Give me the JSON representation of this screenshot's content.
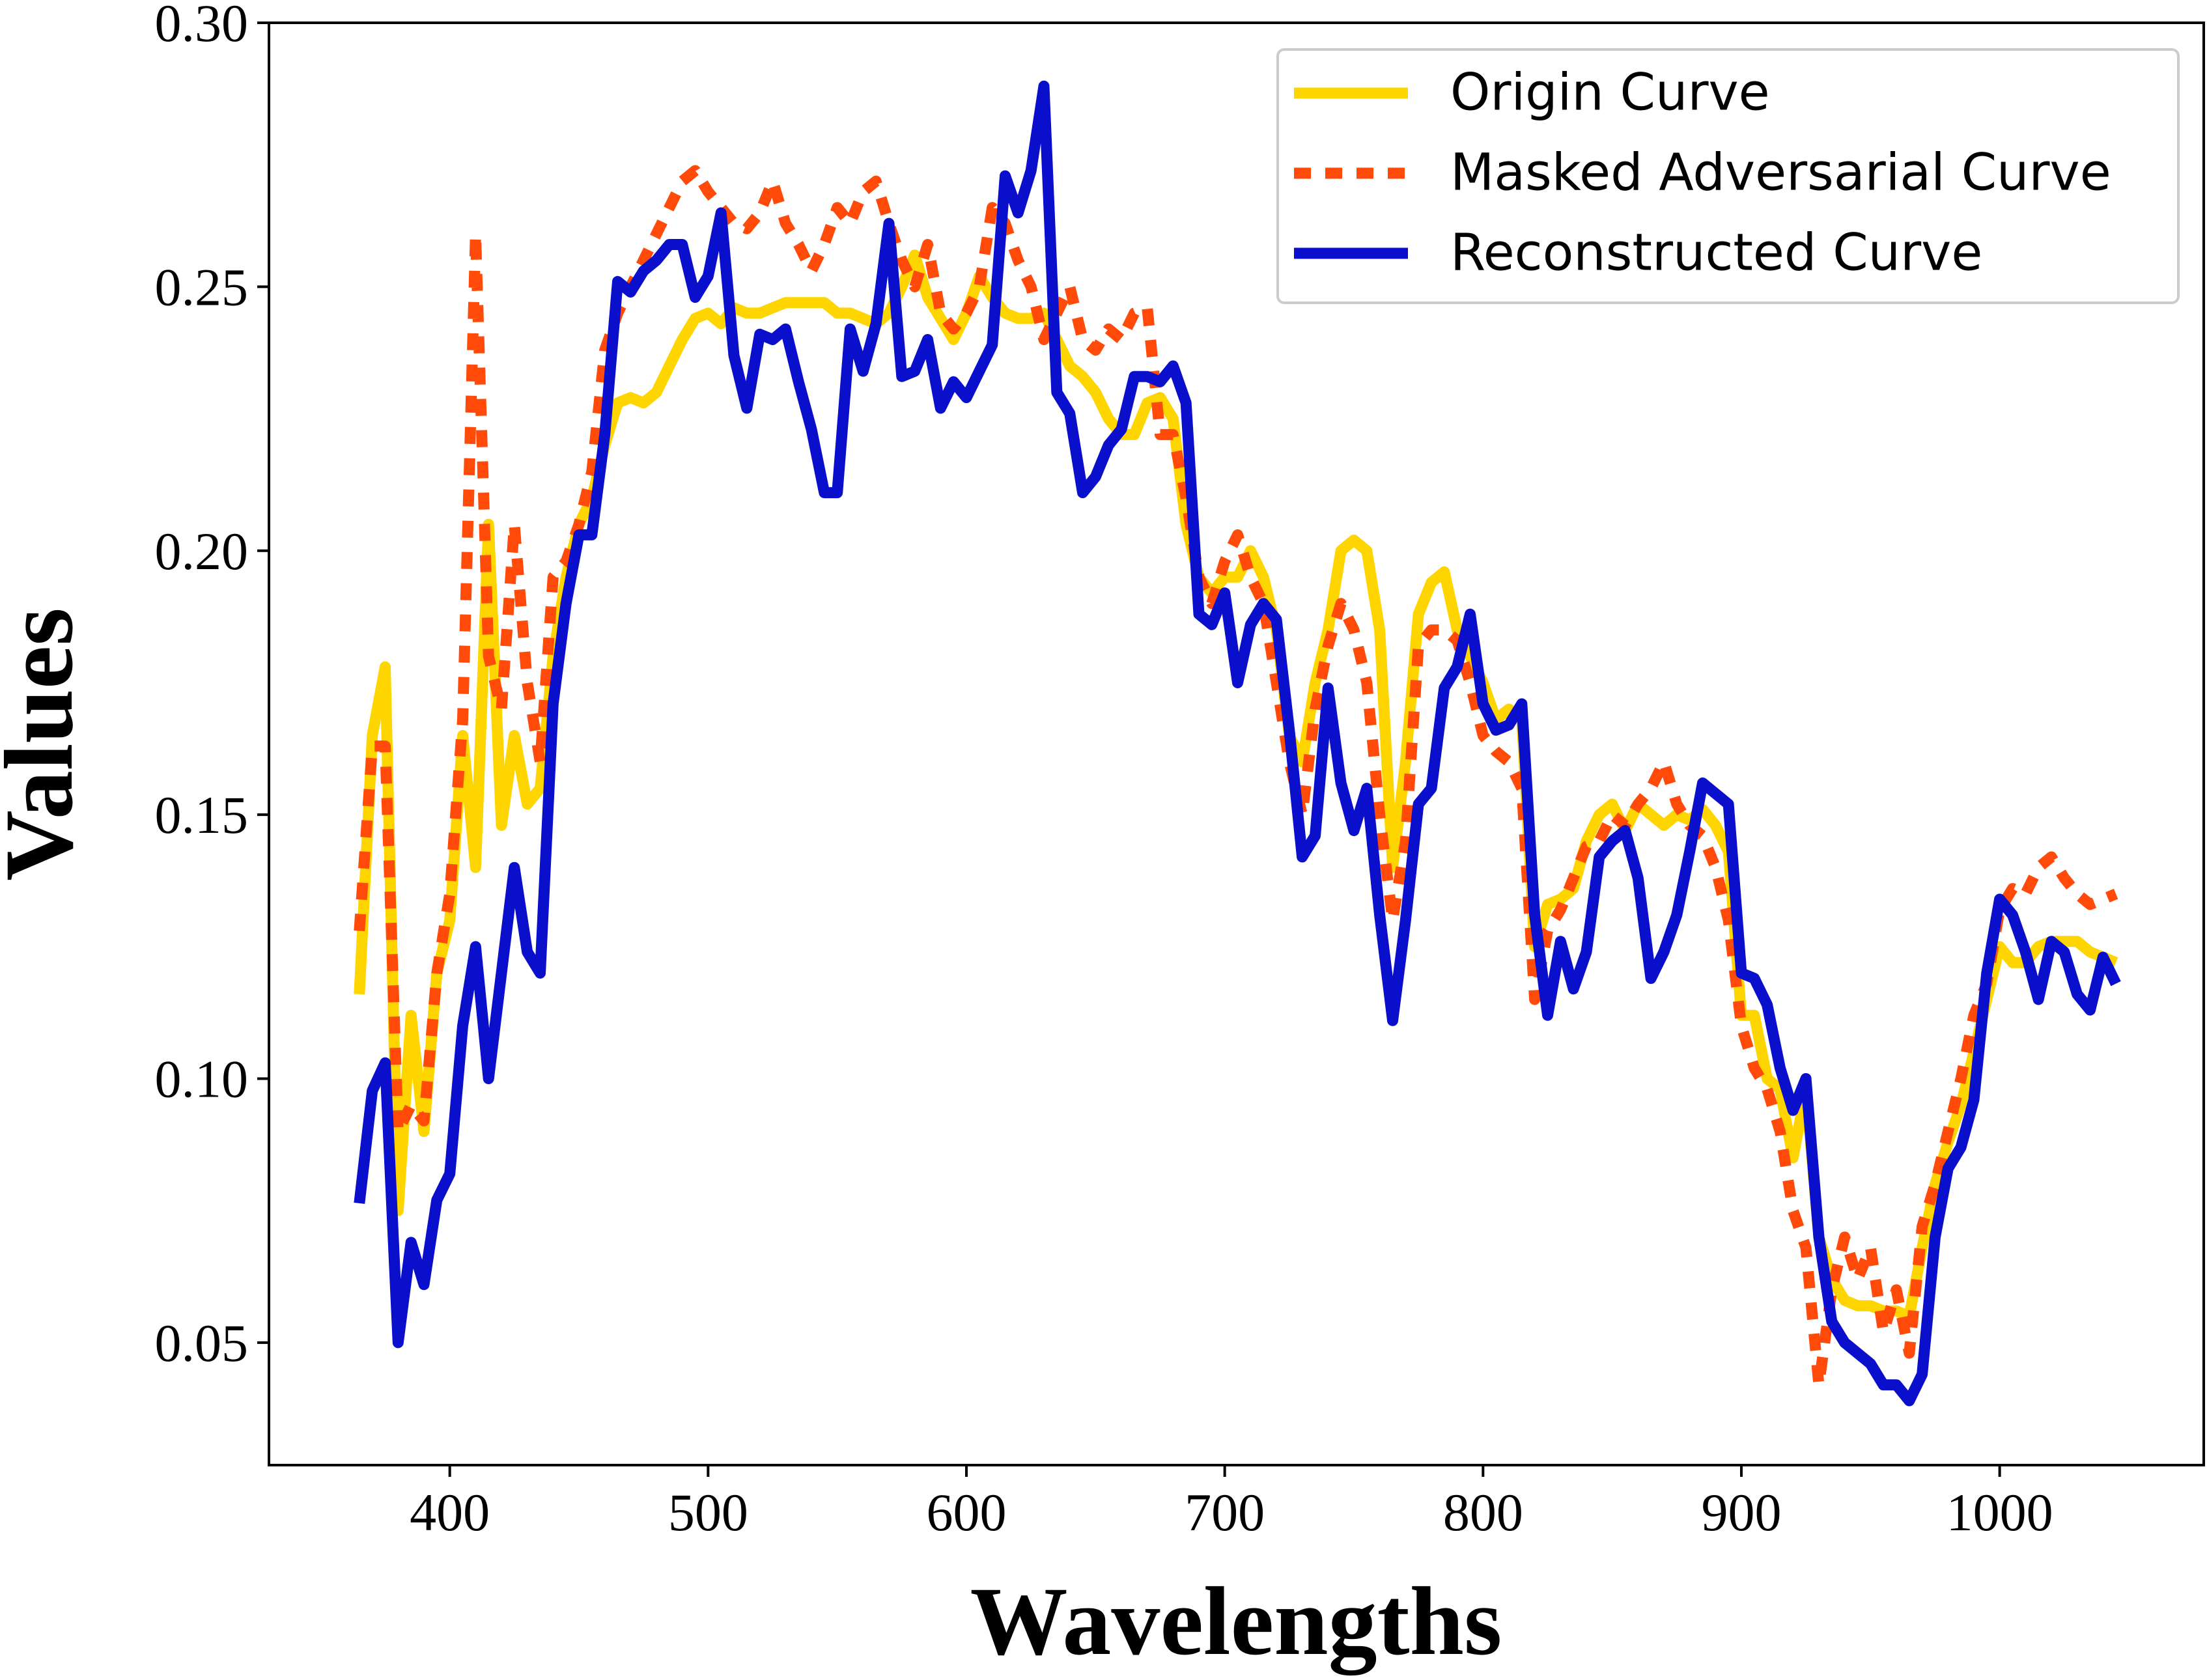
{
  "chart_data": {
    "type": "line",
    "xlabel": "Wavelengths",
    "ylabel": "Values",
    "x": [
      365,
      370,
      375,
      380,
      385,
      390,
      395,
      400,
      405,
      410,
      415,
      420,
      425,
      430,
      435,
      440,
      445,
      450,
      455,
      460,
      465,
      470,
      475,
      480,
      485,
      490,
      495,
      500,
      505,
      510,
      515,
      520,
      525,
      530,
      535,
      540,
      545,
      550,
      555,
      560,
      565,
      570,
      575,
      580,
      585,
      590,
      595,
      600,
      605,
      610,
      615,
      620,
      625,
      630,
      635,
      640,
      645,
      650,
      655,
      660,
      665,
      670,
      675,
      680,
      685,
      690,
      695,
      700,
      705,
      710,
      715,
      720,
      725,
      730,
      735,
      740,
      745,
      750,
      755,
      760,
      765,
      770,
      775,
      780,
      785,
      790,
      795,
      800,
      805,
      810,
      815,
      820,
      825,
      830,
      835,
      840,
      845,
      850,
      855,
      860,
      865,
      870,
      875,
      880,
      885,
      890,
      895,
      900,
      905,
      910,
      915,
      920,
      925,
      930,
      935,
      940,
      945,
      950,
      955,
      960,
      965,
      970,
      975,
      980,
      985,
      990,
      995,
      1000,
      1005,
      1010,
      1015,
      1020,
      1025,
      1030,
      1035,
      1040,
      1045
    ],
    "series": [
      {
        "name": "Origin Curve",
        "color": "#ffd500",
        "style": "solid",
        "values": [
          0.116,
          0.165,
          0.178,
          0.075,
          0.112,
          0.09,
          0.12,
          0.13,
          0.165,
          0.14,
          0.205,
          0.148,
          0.165,
          0.152,
          0.155,
          0.18,
          0.195,
          0.205,
          0.21,
          0.22,
          0.228,
          0.229,
          0.228,
          0.23,
          0.235,
          0.24,
          0.244,
          0.245,
          0.243,
          0.246,
          0.245,
          0.245,
          0.246,
          0.247,
          0.247,
          0.247,
          0.247,
          0.245,
          0.245,
          0.244,
          0.243,
          0.245,
          0.25,
          0.256,
          0.248,
          0.244,
          0.24,
          0.245,
          0.252,
          0.248,
          0.245,
          0.244,
          0.244,
          0.245,
          0.24,
          0.235,
          0.233,
          0.23,
          0.225,
          0.222,
          0.222,
          0.228,
          0.229,
          0.225,
          0.205,
          0.195,
          0.192,
          0.195,
          0.195,
          0.2,
          0.195,
          0.185,
          0.165,
          0.16,
          0.175,
          0.185,
          0.2,
          0.202,
          0.2,
          0.185,
          0.14,
          0.16,
          0.188,
          0.194,
          0.196,
          0.185,
          0.18,
          0.175,
          0.168,
          0.17,
          0.168,
          0.125,
          0.133,
          0.134,
          0.136,
          0.145,
          0.15,
          0.152,
          0.147,
          0.152,
          0.15,
          0.148,
          0.15,
          0.149,
          0.151,
          0.148,
          0.143,
          0.112,
          0.112,
          0.1,
          0.098,
          0.085,
          0.098,
          0.07,
          0.062,
          0.058,
          0.057,
          0.057,
          0.056,
          0.056,
          0.055,
          0.068,
          0.08,
          0.088,
          0.095,
          0.105,
          0.115,
          0.125,
          0.122,
          0.122,
          0.125,
          0.126,
          0.126,
          0.126,
          0.124,
          0.123,
          0.122
        ]
      },
      {
        "name": "Masked Adversarial Curve",
        "color": "#ff4a0a",
        "style": "dashed",
        "values": [
          0.128,
          0.163,
          0.163,
          0.09,
          0.095,
          0.092,
          0.12,
          0.135,
          0.168,
          0.26,
          0.18,
          0.17,
          0.205,
          0.175,
          0.16,
          0.195,
          0.198,
          0.205,
          0.215,
          0.238,
          0.245,
          0.25,
          0.255,
          0.26,
          0.265,
          0.27,
          0.272,
          0.268,
          0.265,
          0.262,
          0.261,
          0.264,
          0.27,
          0.262,
          0.258,
          0.253,
          0.258,
          0.265,
          0.262,
          0.268,
          0.27,
          0.262,
          0.255,
          0.25,
          0.258,
          0.245,
          0.242,
          0.245,
          0.25,
          0.265,
          0.262,
          0.255,
          0.25,
          0.24,
          0.245,
          0.25,
          0.24,
          0.238,
          0.242,
          0.24,
          0.245,
          0.246,
          0.222,
          0.222,
          0.21,
          0.195,
          0.19,
          0.198,
          0.203,
          0.195,
          0.19,
          0.175,
          0.16,
          0.15,
          0.17,
          0.182,
          0.19,
          0.185,
          0.175,
          0.15,
          0.13,
          0.145,
          0.182,
          0.185,
          0.185,
          0.183,
          0.175,
          0.165,
          0.162,
          0.16,
          0.155,
          0.115,
          0.128,
          0.132,
          0.138,
          0.144,
          0.145,
          0.15,
          0.148,
          0.152,
          0.155,
          0.16,
          0.152,
          0.148,
          0.146,
          0.14,
          0.13,
          0.11,
          0.102,
          0.098,
          0.09,
          0.075,
          0.068,
          0.042,
          0.06,
          0.07,
          0.062,
          0.068,
          0.052,
          0.06,
          0.048,
          0.072,
          0.08,
          0.09,
          0.1,
          0.112,
          0.118,
          0.132,
          0.136,
          0.135,
          0.14,
          0.142,
          0.138,
          0.135,
          0.133,
          0.134,
          0.135
        ]
      },
      {
        "name": "Reconstructed Curve",
        "color": "#0a0fcc",
        "style": "solid",
        "values": [
          0.0764,
          0.0977,
          0.103,
          0.05,
          0.069,
          0.061,
          0.077,
          0.082,
          0.11,
          0.125,
          0.1,
          0.12,
          0.14,
          0.124,
          0.12,
          0.171,
          0.19,
          0.203,
          0.203,
          0.222,
          0.251,
          0.249,
          0.253,
          0.255,
          0.258,
          0.258,
          0.248,
          0.252,
          0.264,
          0.237,
          0.227,
          0.241,
          0.24,
          0.242,
          0.232,
          0.223,
          0.211,
          0.211,
          0.242,
          0.234,
          0.243,
          0.262,
          0.233,
          0.234,
          0.24,
          0.227,
          0.232,
          0.229,
          0.234,
          0.239,
          0.271,
          0.264,
          0.272,
          0.288,
          0.23,
          0.226,
          0.211,
          0.214,
          0.22,
          0.223,
          0.233,
          0.233,
          0.232,
          0.235,
          0.228,
          0.188,
          0.186,
          0.192,
          0.175,
          0.186,
          0.19,
          0.187,
          0.166,
          0.142,
          0.146,
          0.174,
          0.156,
          0.147,
          0.155,
          0.131,
          0.111,
          0.13,
          0.152,
          0.155,
          0.174,
          0.178,
          0.188,
          0.171,
          0.166,
          0.167,
          0.171,
          0.131,
          0.112,
          0.126,
          0.117,
          0.124,
          0.142,
          0.145,
          0.147,
          0.138,
          0.119,
          0.124,
          0.131,
          0.143,
          0.156,
          0.154,
          0.152,
          0.12,
          0.119,
          0.114,
          0.102,
          0.094,
          0.1,
          0.07,
          0.054,
          0.05,
          0.048,
          0.046,
          0.042,
          0.042,
          0.039,
          0.044,
          0.07,
          0.083,
          0.087,
          0.096,
          0.12,
          0.134,
          0.131,
          0.124,
          0.115,
          0.126,
          0.124,
          0.116,
          0.113,
          0.123,
          0.118
        ]
      }
    ],
    "xlim": [
      330,
      1079
    ],
    "ylim": [
      0.0268,
      0.3
    ],
    "xticks": [
      400,
      500,
      600,
      700,
      800,
      900,
      1000
    ],
    "yticks": [
      0.05,
      {
        "value": 0.1,
        "label": "0.10"
      },
      0.15,
      {
        "value": 0.2,
        "label": "0.20"
      },
      0.25,
      {
        "value": 0.3,
        "label": "0.30"
      }
    ],
    "grid": false,
    "legend": "upper right"
  }
}
